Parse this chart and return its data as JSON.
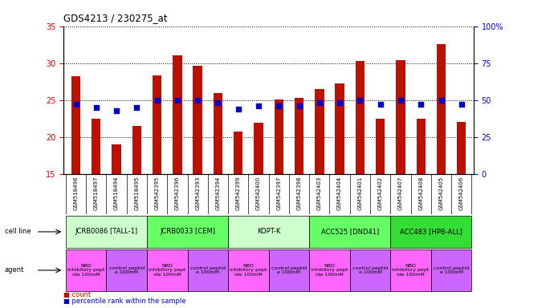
{
  "title": "GDS4213 / 230275_at",
  "samples": [
    "GSM518496",
    "GSM518497",
    "GSM518494",
    "GSM518495",
    "GSM542395",
    "GSM542396",
    "GSM542393",
    "GSM542394",
    "GSM542399",
    "GSM542400",
    "GSM542397",
    "GSM542398",
    "GSM542403",
    "GSM542404",
    "GSM542401",
    "GSM542402",
    "GSM542407",
    "GSM542408",
    "GSM542405",
    "GSM542406"
  ],
  "counts": [
    28.2,
    22.5,
    19.0,
    21.5,
    28.3,
    31.1,
    29.6,
    26.0,
    20.7,
    21.9,
    25.1,
    25.3,
    26.5,
    27.3,
    30.3,
    22.5,
    30.4,
    22.5,
    32.6,
    22.1
  ],
  "percentile_ranks": [
    47,
    45,
    43,
    45,
    50,
    50,
    50,
    48,
    44,
    46,
    46,
    46,
    48,
    48,
    50,
    47,
    50,
    47,
    50,
    47
  ],
  "ylim_left": [
    15,
    35
  ],
  "ylim_right": [
    0,
    100
  ],
  "yticks_left": [
    15,
    20,
    25,
    30,
    35
  ],
  "yticks_right": [
    0,
    25,
    50,
    75,
    100
  ],
  "cell_line_groups": [
    {
      "label": "JCRB0086 [TALL-1]",
      "start": 0,
      "end": 4,
      "color": "#ccffcc"
    },
    {
      "label": "JCRB0033 [CEM]",
      "start": 4,
      "end": 8,
      "color": "#66ff66"
    },
    {
      "label": "KOPT-K",
      "start": 8,
      "end": 12,
      "color": "#ccffcc"
    },
    {
      "label": "ACC525 [DND41]",
      "start": 12,
      "end": 16,
      "color": "#66ff66"
    },
    {
      "label": "ACC483 [HPB-ALL]",
      "start": 16,
      "end": 20,
      "color": "#33dd33"
    }
  ],
  "agent_groups": [
    {
      "label": "NBD\ninhibitory pept\nide 100mM",
      "start": 0,
      "end": 2,
      "color": "#ff66ff"
    },
    {
      "label": "control peptid\ne 100mM",
      "start": 2,
      "end": 4,
      "color": "#cc66ff"
    },
    {
      "label": "NBD\ninhibitory pept\nide 100mM",
      "start": 4,
      "end": 6,
      "color": "#ff66ff"
    },
    {
      "label": "control peptid\ne 100mM",
      "start": 6,
      "end": 8,
      "color": "#cc66ff"
    },
    {
      "label": "NBD\ninhibitory pept\nide 100mM",
      "start": 8,
      "end": 10,
      "color": "#ff66ff"
    },
    {
      "label": "control peptid\ne 100mM",
      "start": 10,
      "end": 12,
      "color": "#cc66ff"
    },
    {
      "label": "NBD\ninhibitory pept\nide 100mM",
      "start": 12,
      "end": 14,
      "color": "#ff66ff"
    },
    {
      "label": "control peptid\ne 100mM",
      "start": 14,
      "end": 16,
      "color": "#cc66ff"
    },
    {
      "label": "NBD\ninhibitory pept\nide 100mM",
      "start": 16,
      "end": 18,
      "color": "#ff66ff"
    },
    {
      "label": "control peptid\ne 100mM",
      "start": 18,
      "end": 20,
      "color": "#cc66ff"
    }
  ],
  "bar_color": "#bb1100",
  "dot_color": "#0000cc",
  "grid_color": "#000000",
  "tick_color_left": "#cc0000",
  "tick_color_right": "#0000cc",
  "plot_bg": "#ffffff",
  "xtick_bg": "#d8d8d8",
  "bar_width": 0.45,
  "dot_size": 22,
  "cell_line_label": "cell line",
  "agent_label": "agent",
  "legend_count": "count",
  "legend_pct": "percentile rank within the sample"
}
